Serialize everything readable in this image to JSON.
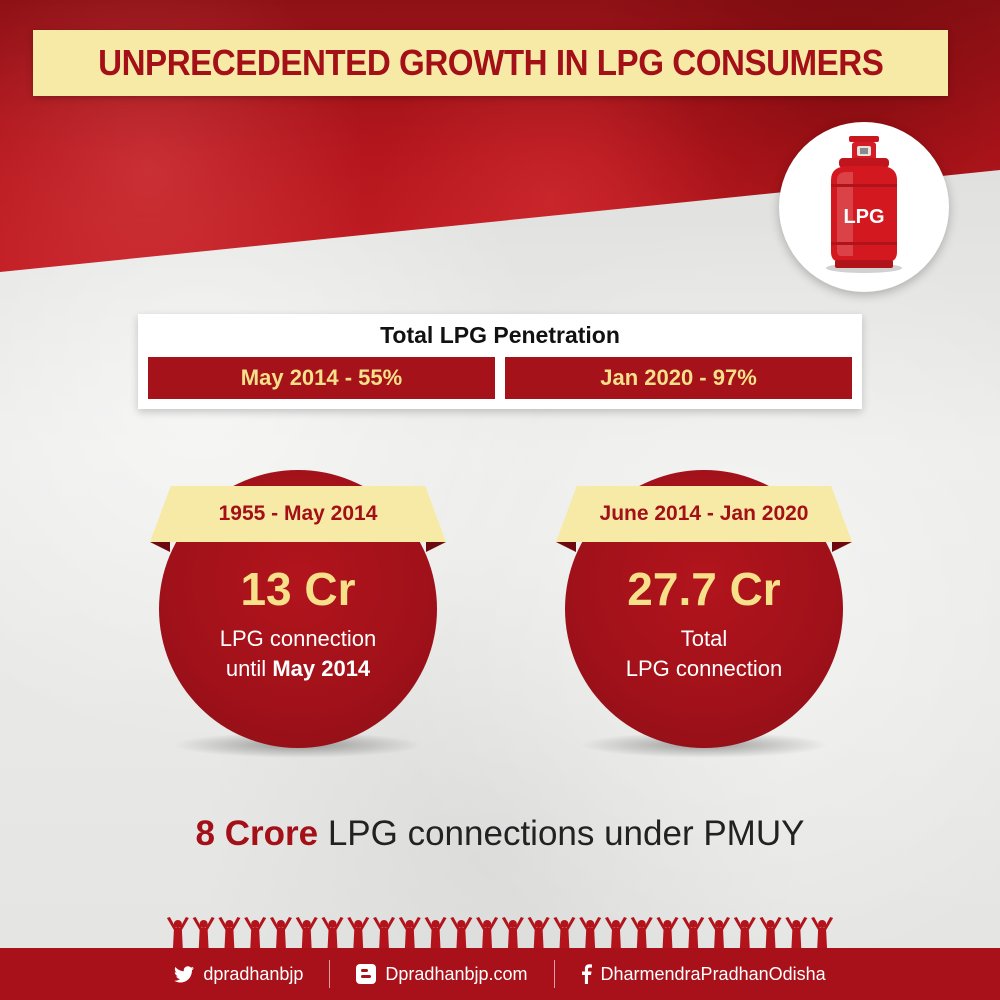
{
  "title": "UNPRECEDENTED GROWTH IN LPG CONSUMERS",
  "cylinder_label": "LPG",
  "penetration": {
    "heading": "Total LPG Penetration",
    "left": "May 2014 - 55%",
    "right": "Jan 2020 - 97%"
  },
  "stats": [
    {
      "period": "1955 - May 2014",
      "value": "13 Cr",
      "line1": "LPG connection",
      "line2_prefix": "until ",
      "line2_bold": "May 2014"
    },
    {
      "period": "June 2014 - Jan 2020",
      "value": "27.7 Cr",
      "line1": "Total",
      "line2": "LPG connection"
    }
  ],
  "pmuy": {
    "highlight": "8 Crore",
    "rest": " LPG connections under PMUY"
  },
  "footer": {
    "twitter": "dpradhanbjp",
    "blog": "Dpradhanbjp.com",
    "facebook": "DharmendraPradhanOdisha"
  },
  "colors": {
    "brand_red": "#a8111a",
    "title_yellow": "#f7eaa6",
    "value_yellow": "#f7e08a"
  }
}
